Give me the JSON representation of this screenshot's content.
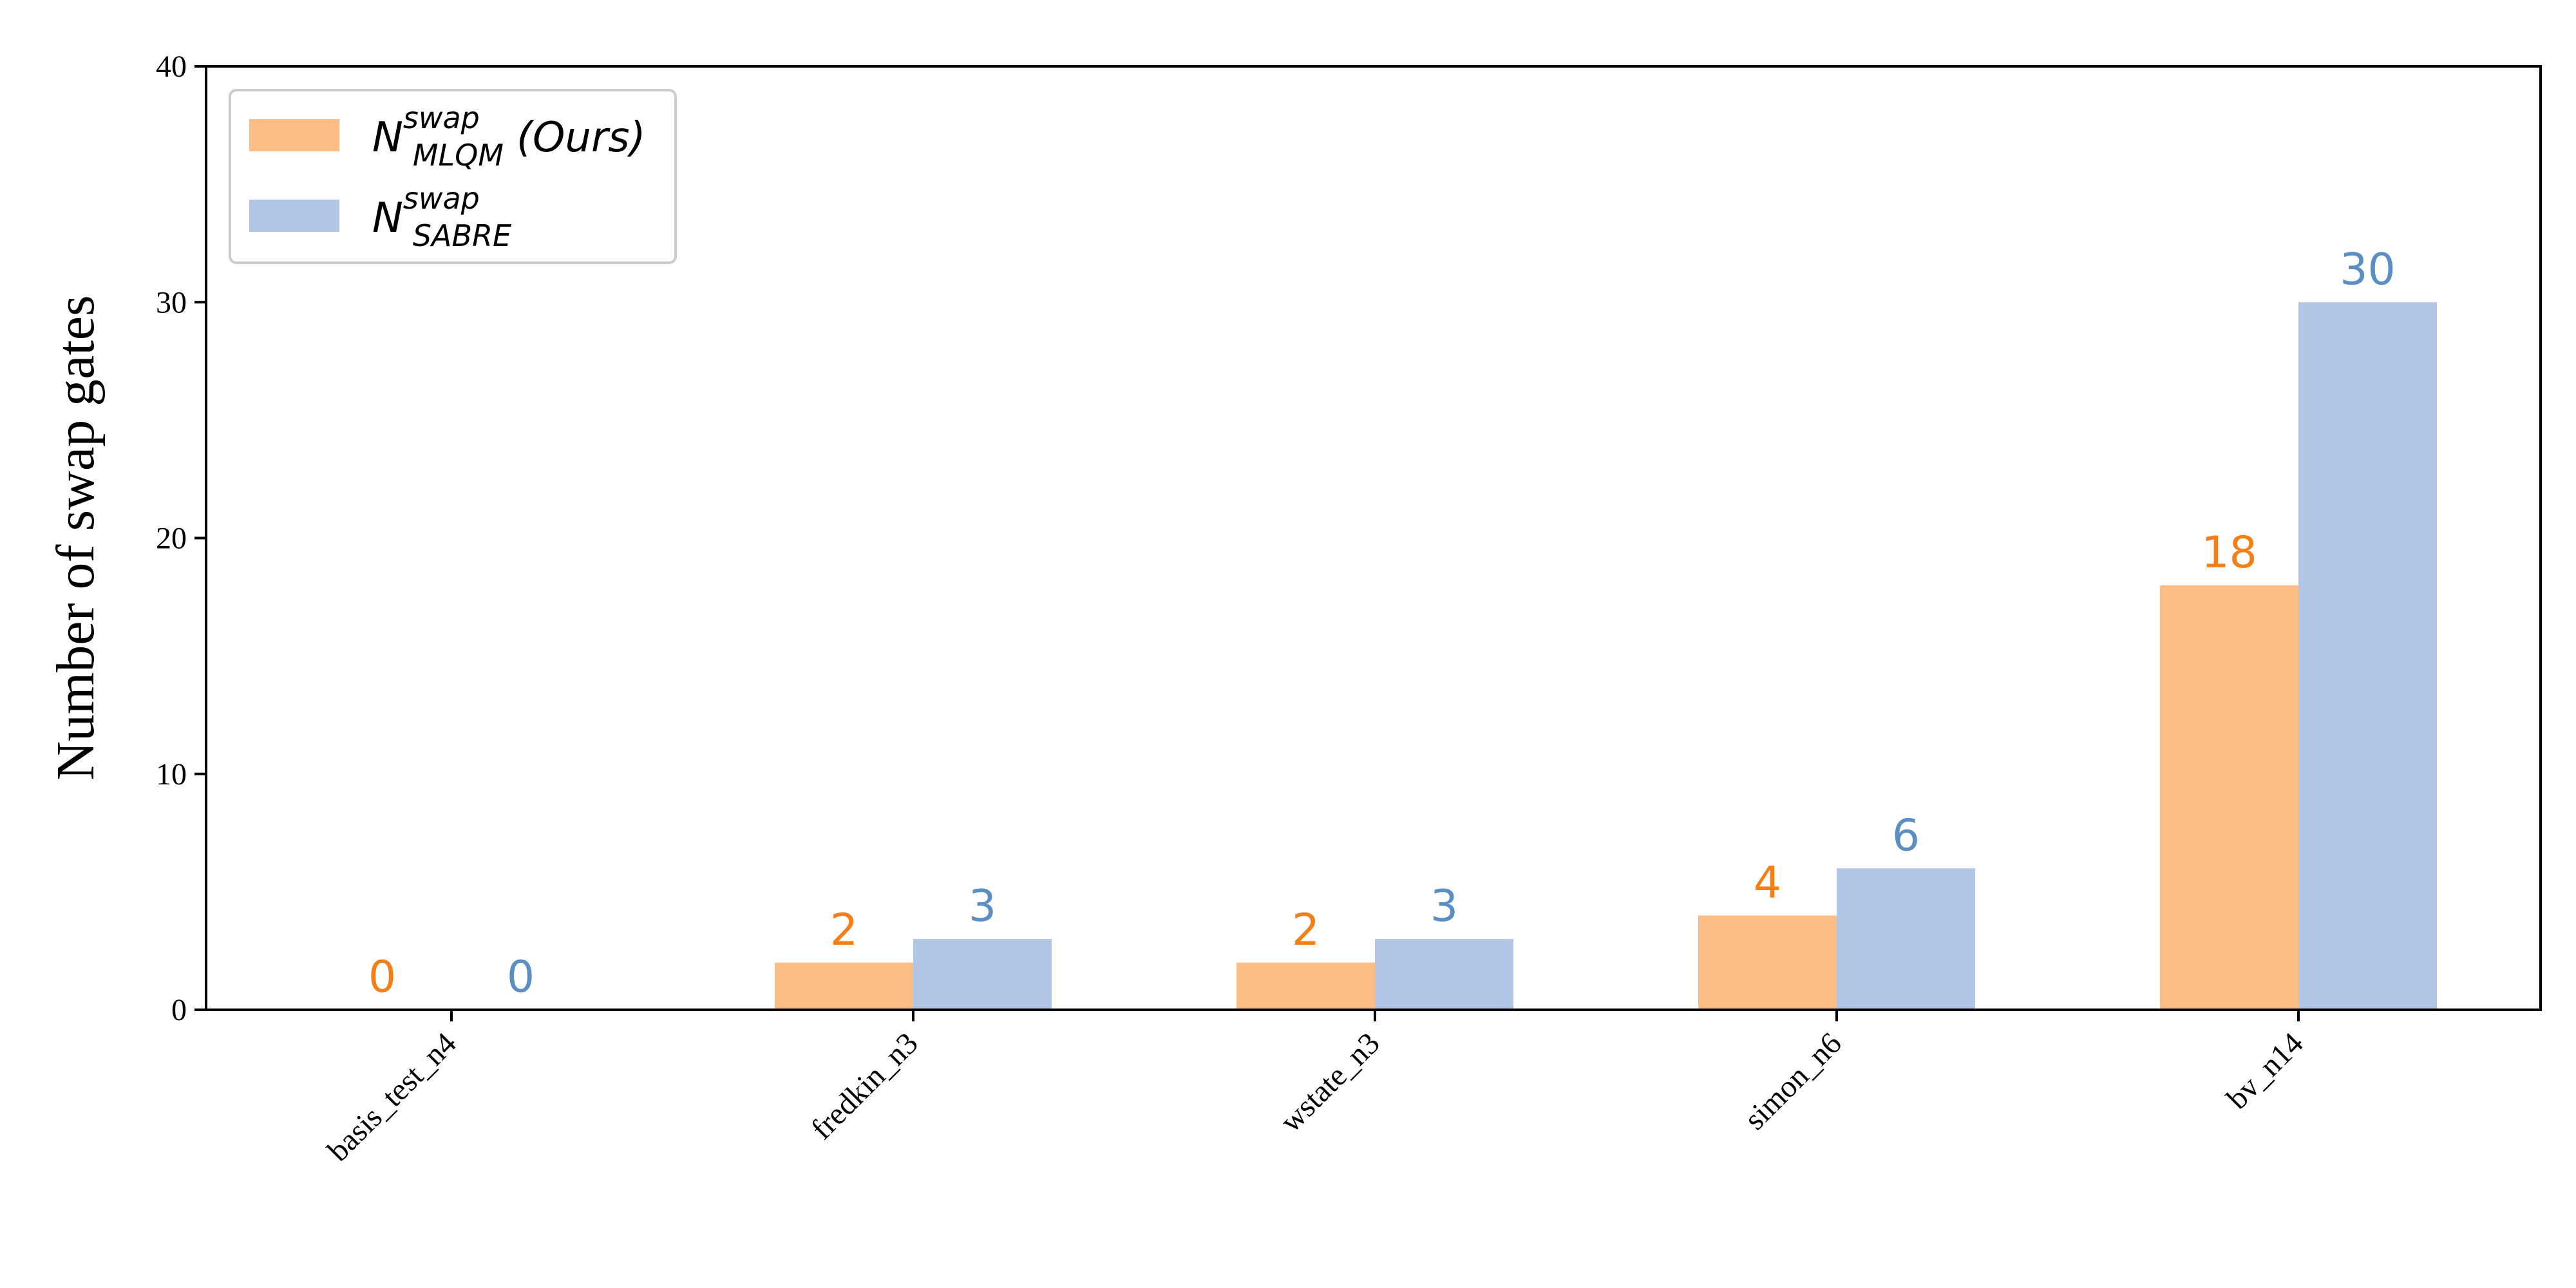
{
  "chart_data": {
    "type": "bar",
    "title": "",
    "xlabel": "",
    "ylabel": "Number of swap gates",
    "categories": [
      "basis_test_n4",
      "fredkin_n3",
      "wstate_n3",
      "simon_n6",
      "bv_n14"
    ],
    "series": [
      {
        "name": "N_MLQM^swap (Ours)",
        "legend": {
          "base": "N",
          "sup": "swap",
          "sub": "MLQM",
          "suffix": "(Ours)"
        },
        "values": [
          0,
          2,
          2,
          4,
          18
        ],
        "fill": "#fdbe85",
        "label_color": "#f57f17"
      },
      {
        "name": "N_SABRE^swap",
        "legend": {
          "base": "N",
          "sup": "swap",
          "sub": "SABRE",
          "suffix": ""
        },
        "values": [
          0,
          3,
          3,
          6,
          30
        ],
        "fill": "#b1c5e5",
        "label_color": "#5b8fc4"
      }
    ],
    "ylim": [
      0,
      40
    ],
    "yticks": [
      0,
      10,
      20,
      30,
      40
    ],
    "grid": false,
    "legend_position": "top-left",
    "data_labels": true
  }
}
